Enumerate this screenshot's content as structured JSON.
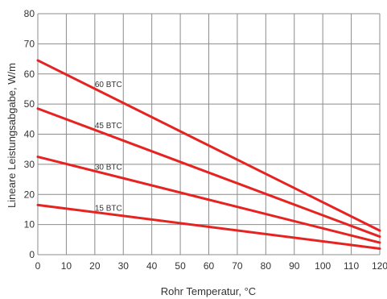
{
  "chart_data": {
    "type": "line",
    "title": "",
    "xlabel": "Rohr Temperatur, °C",
    "ylabel": "Lineare Leistungsabgabe, W/m",
    "xlim": [
      0,
      120
    ],
    "ylim": [
      0,
      80
    ],
    "x_ticks": [
      0,
      10,
      20,
      30,
      40,
      50,
      60,
      70,
      80,
      90,
      100,
      110,
      120
    ],
    "y_ticks": [
      0,
      10,
      20,
      30,
      40,
      50,
      60,
      70,
      80
    ],
    "grid": true,
    "line_color": "#e52421",
    "series": [
      {
        "name": "60 BTC",
        "x": [
          0,
          120
        ],
        "y": [
          64.5,
          8
        ],
        "label_x": 20
      },
      {
        "name": "45 BTC",
        "x": [
          0,
          120
        ],
        "y": [
          48.5,
          6
        ],
        "label_x": 20
      },
      {
        "name": "30 BTC",
        "x": [
          0,
          120
        ],
        "y": [
          32.5,
          4
        ],
        "label_x": 20
      },
      {
        "name": "15 BTC",
        "x": [
          0,
          120
        ],
        "y": [
          16.5,
          2
        ],
        "label_x": 20
      }
    ]
  }
}
